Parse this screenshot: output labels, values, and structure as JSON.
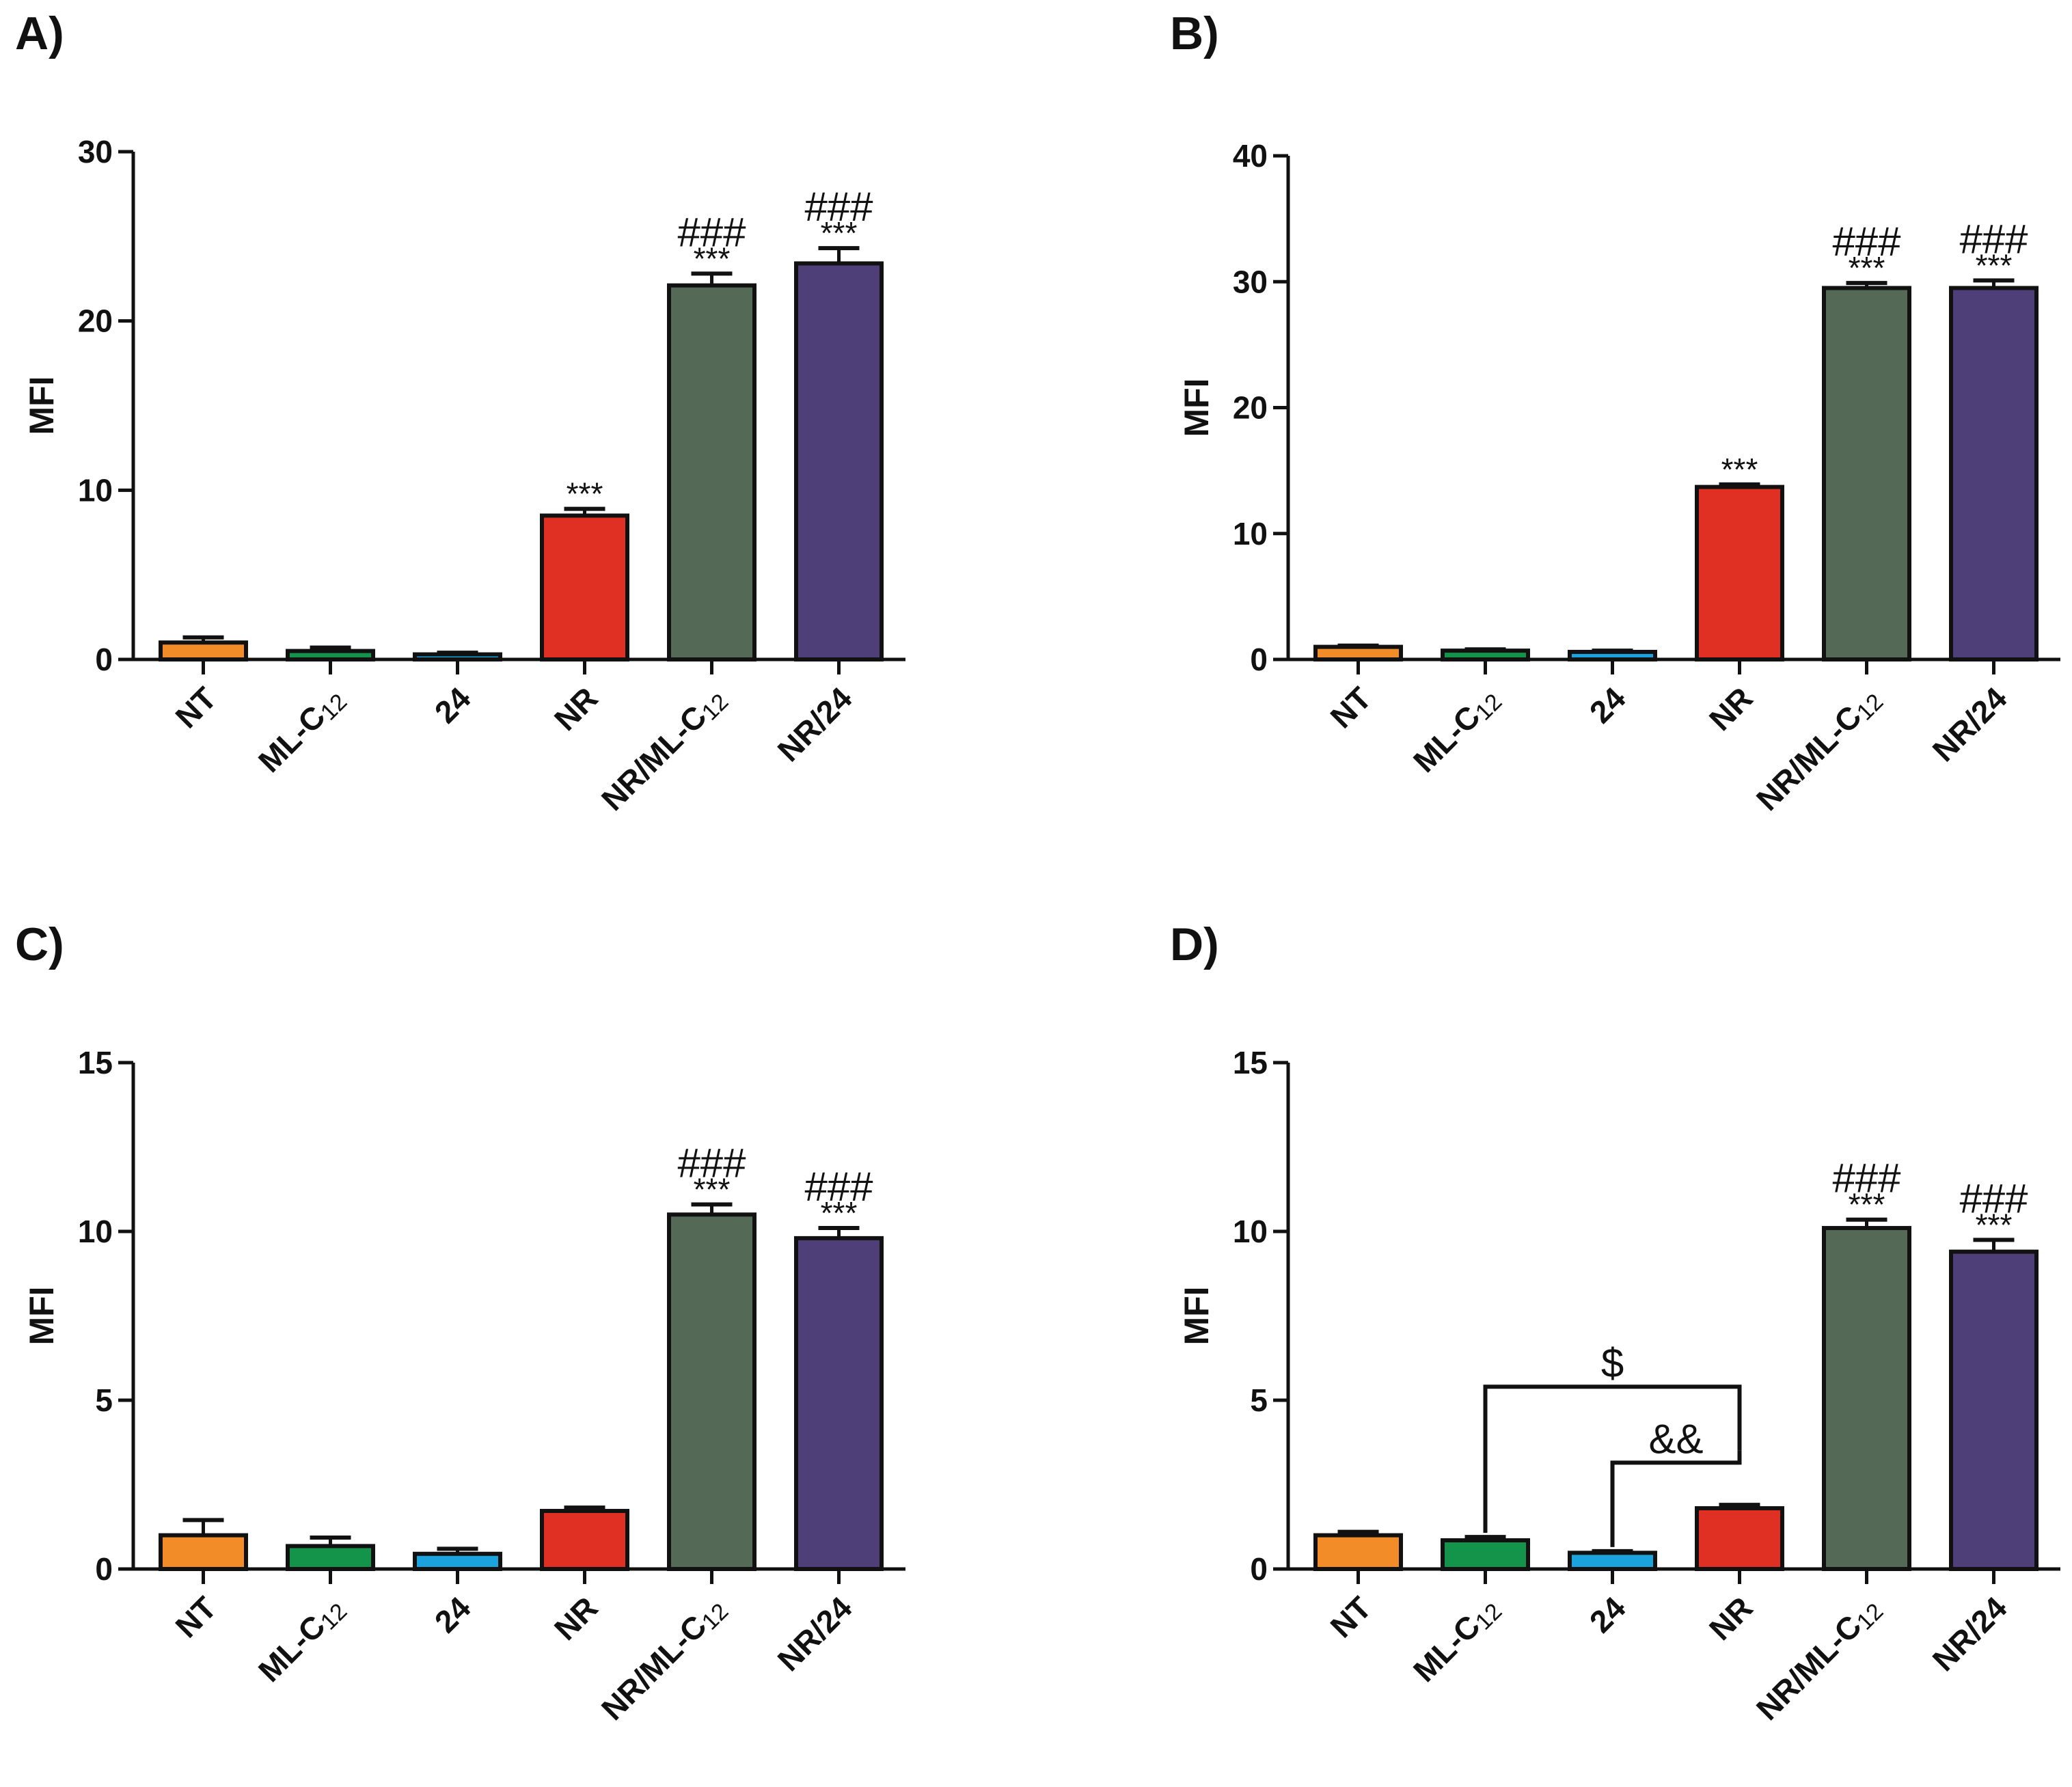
{
  "chart_data": [
    {
      "panel": "A)",
      "type": "bar",
      "ylabel": "MFI",
      "ylim": [
        0,
        30
      ],
      "yticks": [
        "0",
        "10",
        "20",
        "30"
      ],
      "categories": [
        {
          "base": "NT",
          "sub": ""
        },
        {
          "base": "ML-C",
          "sub": "12"
        },
        {
          "base": "24",
          "sub": ""
        },
        {
          "base": "NR",
          "sub": ""
        },
        {
          "base": "NR/ML-C",
          "sub": "12"
        },
        {
          "base": "NR/24",
          "sub": ""
        }
      ],
      "values": [
        1.0,
        0.5,
        0.3,
        8.5,
        22.1,
        23.4
      ],
      "errors": [
        0.3,
        0.2,
        0.1,
        0.4,
        0.7,
        0.9
      ],
      "stars": [
        "",
        "",
        "",
        "***",
        "***",
        "***"
      ],
      "hashes": [
        "",
        "",
        "",
        "",
        "###",
        "###"
      ]
    },
    {
      "panel": "B)",
      "type": "bar",
      "ylabel": "MFI",
      "ylim": [
        0,
        40
      ],
      "yticks": [
        "0",
        "10",
        "20",
        "30",
        "40"
      ],
      "categories": [
        {
          "base": "NT",
          "sub": ""
        },
        {
          "base": "ML-C",
          "sub": "12"
        },
        {
          "base": "24",
          "sub": ""
        },
        {
          "base": "NR",
          "sub": ""
        },
        {
          "base": "NR/ML-C",
          "sub": "12"
        },
        {
          "base": "NR/24",
          "sub": ""
        }
      ],
      "values": [
        1.0,
        0.7,
        0.6,
        13.7,
        29.5,
        29.5
      ],
      "errors": [
        0.1,
        0.1,
        0.1,
        0.2,
        0.4,
        0.6
      ],
      "stars": [
        "",
        "",
        "",
        "***",
        "***",
        "***"
      ],
      "hashes": [
        "",
        "",
        "",
        "",
        "###",
        "###"
      ]
    },
    {
      "panel": "C)",
      "type": "bar",
      "ylabel": "MFI",
      "ylim": [
        0,
        15
      ],
      "yticks": [
        "0",
        "5",
        "10",
        "15"
      ],
      "categories": [
        {
          "base": "NT",
          "sub": ""
        },
        {
          "base": "ML-C",
          "sub": "12"
        },
        {
          "base": "24",
          "sub": ""
        },
        {
          "base": "NR",
          "sub": ""
        },
        {
          "base": "NR/ML-C",
          "sub": "12"
        },
        {
          "base": "NR/24",
          "sub": ""
        }
      ],
      "values": [
        1.0,
        0.68,
        0.45,
        1.72,
        10.5,
        9.8
      ],
      "errors": [
        0.45,
        0.25,
        0.15,
        0.1,
        0.3,
        0.3
      ],
      "stars": [
        "",
        "",
        "",
        "",
        "***",
        "***"
      ],
      "hashes": [
        "",
        "",
        "",
        "",
        "###",
        "###"
      ]
    },
    {
      "panel": "D)",
      "type": "bar",
      "ylabel": "MFI",
      "ylim": [
        0,
        15
      ],
      "yticks": [
        "0",
        "5",
        "10",
        "15"
      ],
      "categories": [
        {
          "base": "NT",
          "sub": ""
        },
        {
          "base": "ML-C",
          "sub": "12"
        },
        {
          "base": "24",
          "sub": ""
        },
        {
          "base": "NR",
          "sub": ""
        },
        {
          "base": "NR/ML-C",
          "sub": "12"
        },
        {
          "base": "NR/24",
          "sub": ""
        }
      ],
      "values": [
        1.0,
        0.85,
        0.48,
        1.8,
        10.1,
        9.4
      ],
      "errors": [
        0.1,
        0.1,
        0.05,
        0.1,
        0.25,
        0.35
      ],
      "stars": [
        "",
        "",
        "",
        "",
        "***",
        "***"
      ],
      "hashes": [
        "",
        "",
        "",
        "",
        "###",
        "###"
      ],
      "brackets": [
        {
          "from": 1,
          "to": 3,
          "level": 5.4,
          "label": "$"
        },
        {
          "from": 2,
          "to": 3,
          "level": 3.15,
          "label": "&&"
        }
      ]
    }
  ],
  "colors": {
    "bars": [
      "#f28c28",
      "#13944a",
      "#1aa3dc",
      "#e03024",
      "#546a57",
      "#4f3f78"
    ],
    "axis": "#111111"
  }
}
